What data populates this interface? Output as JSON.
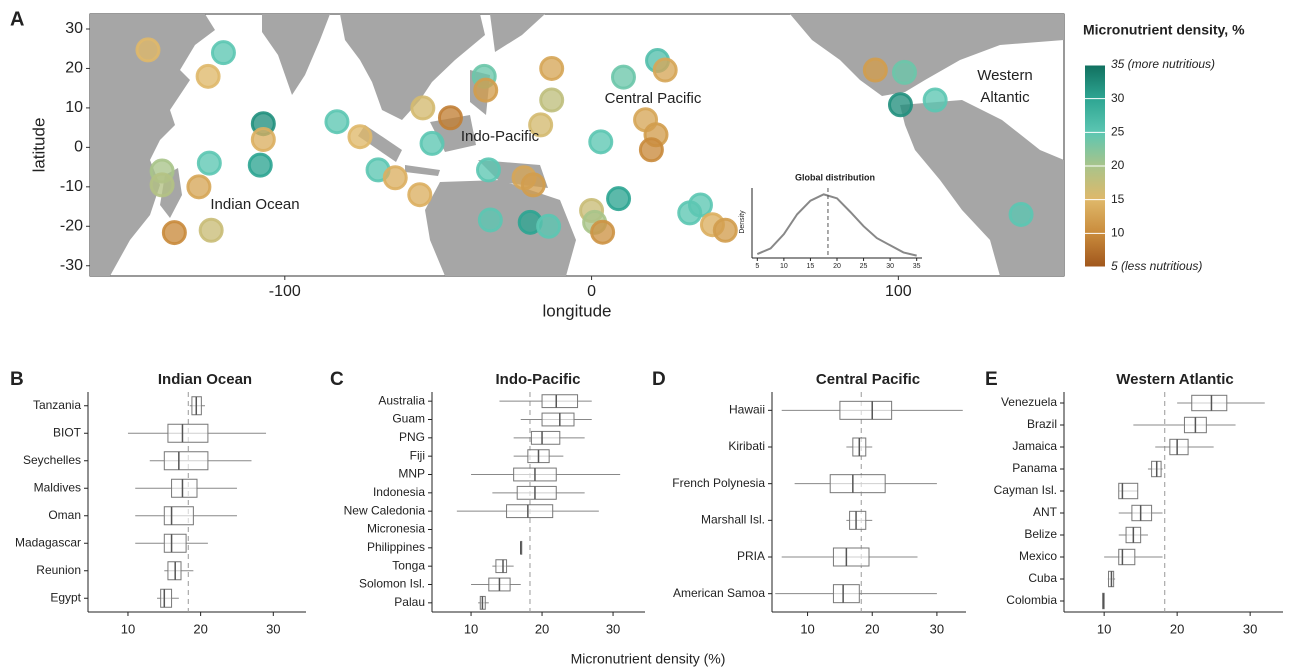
{
  "figure_xlabel": "Micronutrient density (%)",
  "chart_data": [
    {
      "type": "bubble_map",
      "panel": "A",
      "xlabel": "longitude",
      "ylabel": "latitude",
      "xlim": [
        -163.5,
        154
      ],
      "ylim": [
        -32.6,
        33.8
      ],
      "xticks": [
        -100,
        0,
        100
      ],
      "yticks": [
        30,
        20,
        10,
        0,
        -10,
        -20,
        -30
      ],
      "annotations": [
        "Indian Ocean",
        "Indo-Pacific",
        "Central Pacific",
        "Western Altantic"
      ],
      "x": [
        -144.6,
        -120,
        -125,
        -107,
        -107,
        -108,
        -124.6,
        -140,
        -140,
        -128,
        -136,
        -124,
        -83,
        -75.5,
        -69.6,
        -64,
        -56,
        -55,
        -52,
        -46,
        -33.6,
        -35,
        -34.5,
        -22,
        -19,
        -33,
        -20,
        -14,
        -13,
        -13,
        -16.6,
        0,
        1,
        3.6,
        3,
        10.4,
        21.5,
        24,
        17.6,
        21,
        8.8,
        19.5,
        32,
        35.5,
        39.4,
        43.6,
        92.5,
        102,
        100.7,
        112,
        140
      ],
      "y": [
        24.7,
        24,
        18,
        6,
        2,
        -4.5,
        -4,
        -6,
        -9.5,
        -10,
        -21.6,
        -21,
        6.5,
        2.7,
        -5.7,
        -7.7,
        -12,
        10,
        1,
        7.5,
        -5.7,
        18,
        14.5,
        -7.7,
        -9.5,
        -18.4,
        -19,
        -20,
        20,
        12,
        5.7,
        -16,
        -19,
        -21.5,
        1.4,
        17.8,
        22,
        19.6,
        7,
        3.2,
        -13,
        -0.6,
        -16.6,
        -14.6,
        -19.6,
        -21,
        19.6,
        19,
        10.8,
        12,
        -17
      ],
      "values": [
        15,
        25,
        15,
        32,
        14,
        30,
        25,
        20,
        19,
        13,
        10,
        17,
        25,
        15,
        25,
        14,
        14,
        16,
        25,
        9,
        25,
        24,
        12,
        13,
        12,
        25,
        30,
        25,
        13,
        18,
        16,
        17,
        20,
        11,
        25,
        24,
        26,
        13,
        13,
        12,
        30,
        10,
        25,
        25,
        14,
        12,
        12,
        24,
        32,
        25,
        25
      ],
      "colorbar": {
        "title": "Micronutrient density, %",
        "zlim": [
          5,
          35
        ],
        "colors": [
          "#a0561c",
          "#c98b3c",
          "#dfb86a",
          "#a9c48a",
          "#5cc6b2",
          "#2ea592",
          "#11705f"
        ],
        "ticks": [
          {
            "value": 35,
            "label": "35 (more nutritious)"
          },
          30,
          25,
          20,
          15,
          10,
          {
            "value": 5,
            "label": "5 (less nutritious)"
          }
        ]
      }
    },
    {
      "type": "line",
      "title": "Global distribution",
      "ylabel": "Density",
      "xlim": [
        4,
        36
      ],
      "ylim": [
        0,
        0.088
      ],
      "xticks": [
        5,
        10,
        15,
        20,
        25,
        30,
        35
      ],
      "vline": 18.3,
      "color": "#888888",
      "x": [
        5,
        7.5,
        10,
        12.5,
        15,
        17.5,
        20,
        22.5,
        25,
        27.5,
        30,
        32.5,
        35
      ],
      "values": [
        0.005,
        0.012,
        0.03,
        0.055,
        0.072,
        0.08,
        0.075,
        0.058,
        0.04,
        0.025,
        0.016,
        0.007,
        0.003
      ]
    },
    {
      "type": "boxplot",
      "panel": "B",
      "title": "Indian Ocean",
      "xlim": [
        4.5,
        34.5
      ],
      "xticks": [
        10,
        20,
        30
      ],
      "vline": 18.3,
      "categories": [
        "Tanzania",
        "BIOT",
        "Seychelles",
        "Maldives",
        "Oman",
        "Madagascar",
        "Reunion",
        "Egypt"
      ],
      "min": [
        18.5,
        10,
        13,
        11,
        11,
        11,
        15,
        14
      ],
      "q1": [
        18.8,
        15.5,
        15,
        16,
        15,
        15,
        15.5,
        14.5
      ],
      "median": [
        19.4,
        17.5,
        17,
        17.5,
        16,
        16,
        16.5,
        15
      ],
      "q3": [
        20.1,
        21,
        21,
        19.5,
        19,
        18,
        17.3,
        16
      ],
      "max": [
        20.6,
        29,
        27,
        25,
        25,
        21,
        19,
        17
      ]
    },
    {
      "type": "boxplot",
      "panel": "C",
      "title": "Indo-Pacific",
      "xlim": [
        4.5,
        34.5
      ],
      "xticks": [
        10,
        20,
        30
      ],
      "vline": 18.3,
      "categories": [
        "Australia",
        "Guam",
        "PNG",
        "Fiji",
        "MNP",
        "Indonesia",
        "New Caledonia",
        "Micronesia",
        "Philippines",
        "Tonga",
        "Solomon Isl.",
        "Palau"
      ],
      "min": [
        14,
        17,
        16,
        16,
        10,
        13,
        8,
        null,
        17,
        13,
        10,
        11
      ],
      "q1": [
        20,
        20,
        18.5,
        18,
        16,
        16.5,
        15,
        null,
        17,
        13.5,
        12.5,
        11.3
      ],
      "median": [
        22,
        22.5,
        20,
        19.5,
        19,
        19,
        18,
        null,
        17,
        14.5,
        14,
        11.6
      ],
      "q3": [
        25,
        24.5,
        22.5,
        21,
        22,
        22,
        21.5,
        null,
        17,
        15,
        15.5,
        12
      ],
      "max": [
        27,
        27,
        26,
        23,
        31,
        26,
        28,
        null,
        17,
        16,
        17,
        12.5
      ]
    },
    {
      "type": "boxplot",
      "panel": "D",
      "title": "Central Pacific",
      "xlim": [
        4.5,
        34.5
      ],
      "xticks": [
        10,
        20,
        30
      ],
      "vline": 18.3,
      "categories": [
        "Hawaii",
        "Kiribati",
        "French Polynesia",
        "Marshall Isl.",
        "PRIA",
        "American Samoa"
      ],
      "min": [
        6,
        16,
        8,
        16,
        6,
        5
      ],
      "q1": [
        15,
        17,
        13.5,
        16.5,
        14,
        14
      ],
      "median": [
        20,
        18,
        17,
        17.5,
        16,
        15.5
      ],
      "q3": [
        23,
        19,
        22,
        19,
        19.5,
        18
      ],
      "max": [
        34,
        20,
        30,
        20,
        27,
        30
      ]
    },
    {
      "type": "boxplot",
      "panel": "E",
      "title": "Western Atlantic",
      "xlim": [
        4.5,
        34.5
      ],
      "xticks": [
        10,
        20,
        30
      ],
      "vline": 18.3,
      "categories": [
        "Venezuela",
        "Brazil",
        "Jamaica",
        "Panama",
        "Cayman Isl.",
        "ANT",
        "Belize",
        "Mexico",
        "Cuba",
        "Colombia"
      ],
      "min": [
        20,
        14,
        17,
        16,
        12,
        12,
        12,
        10,
        10.5,
        9.8
      ],
      "q1": [
        22,
        21,
        19,
        16.5,
        12,
        13.8,
        13,
        12,
        10.6,
        9.8
      ],
      "median": [
        24.7,
        22.5,
        20,
        17.2,
        12.5,
        15,
        14,
        12.5,
        11,
        9.9
      ],
      "q3": [
        26.8,
        24,
        21.5,
        17.8,
        14.6,
        16.5,
        15,
        14.2,
        11.3,
        10
      ],
      "max": [
        32,
        28,
        25,
        18,
        14.6,
        18,
        16,
        18,
        11.5,
        10
      ]
    }
  ]
}
